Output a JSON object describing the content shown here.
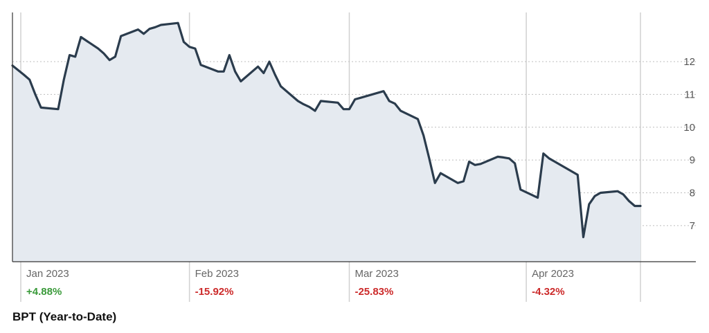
{
  "chart_data": {
    "type": "area",
    "title": "BPT (Year-to-Date)",
    "xlabel": "",
    "ylabel": "",
    "ylim": [
      5.9,
      13.5
    ],
    "yticks": [
      7,
      8,
      9,
      10,
      11,
      12
    ],
    "y_axis_position": "right",
    "grid": "dotted horizontal",
    "months": [
      {
        "label": "Jan 2023",
        "change": "+4.88%",
        "change_color": "#3a9a3a"
      },
      {
        "label": "Feb 2023",
        "change": "-15.92%",
        "change_color": "#cc2a2a"
      },
      {
        "label": "Mar 2023",
        "change": "-25.83%",
        "change_color": "#cc2a2a"
      },
      {
        "label": "Apr 2023",
        "change": "-4.32%",
        "change_color": "#cc2a2a"
      }
    ],
    "series": [
      {
        "x": [
          "2023-01-01",
          "2023-01-03",
          "2023-01-04",
          "2023-01-05",
          "2023-01-06",
          "2023-01-09",
          "2023-01-10",
          "2023-01-11",
          "2023-01-12",
          "2023-01-13",
          "2023-01-16",
          "2023-01-17",
          "2023-01-18",
          "2023-01-19",
          "2023-01-20",
          "2023-01-23",
          "2023-01-24",
          "2023-01-25",
          "2023-01-26",
          "2023-01-27",
          "2023-01-30",
          "2023-01-31",
          "2023-02-01",
          "2023-02-02",
          "2023-02-03",
          "2023-02-06",
          "2023-02-07",
          "2023-02-08",
          "2023-02-09",
          "2023-02-10",
          "2023-02-13",
          "2023-02-14",
          "2023-02-15",
          "2023-02-16",
          "2023-02-17",
          "2023-02-20",
          "2023-02-21",
          "2023-02-22",
          "2023-02-23",
          "2023-02-24",
          "2023-02-27",
          "2023-02-28",
          "2023-03-01",
          "2023-03-02",
          "2023-03-03",
          "2023-03-06",
          "2023-03-07",
          "2023-03-08",
          "2023-03-09",
          "2023-03-10",
          "2023-03-13",
          "2023-03-14",
          "2023-03-15",
          "2023-03-16",
          "2023-03-17",
          "2023-03-20",
          "2023-03-21",
          "2023-03-22",
          "2023-03-23",
          "2023-03-24",
          "2023-03-27",
          "2023-03-28",
          "2023-03-29",
          "2023-03-30",
          "2023-03-31",
          "2023-04-03",
          "2023-04-04",
          "2023-04-05",
          "2023-04-06",
          "2023-04-10",
          "2023-04-11",
          "2023-04-12",
          "2023-04-13",
          "2023-04-14",
          "2023-04-17",
          "2023-04-18",
          "2023-04-19",
          "2023-04-20",
          "2023-04-21"
        ],
        "values": [
          11.88,
          11.6,
          11.45,
          11.0,
          10.6,
          10.55,
          11.45,
          12.2,
          12.15,
          12.75,
          12.4,
          12.25,
          12.05,
          12.15,
          12.78,
          12.98,
          12.85,
          13.0,
          13.05,
          13.12,
          13.18,
          12.6,
          12.45,
          12.4,
          11.9,
          11.7,
          11.7,
          12.2,
          11.7,
          11.4,
          11.85,
          11.65,
          12.0,
          11.6,
          11.25,
          10.8,
          10.7,
          10.62,
          10.5,
          10.8,
          10.75,
          10.55,
          10.55,
          10.85,
          10.9,
          11.05,
          11.1,
          10.8,
          10.72,
          10.5,
          10.25,
          9.75,
          9.05,
          8.3,
          8.6,
          8.3,
          8.35,
          8.95,
          8.85,
          8.88,
          9.1,
          9.08,
          9.05,
          8.9,
          8.1,
          7.85,
          9.2,
          9.05,
          8.95,
          8.55,
          6.65,
          7.65,
          7.9,
          8.0,
          8.05,
          7.95,
          7.75,
          7.6,
          7.6
        ]
      }
    ]
  },
  "colors": {
    "line": "#2b3c4d",
    "fill": "#e5eaf0",
    "grid": "#bcbcbc",
    "divider": "#d0d0d0",
    "baseline": "#333333"
  }
}
